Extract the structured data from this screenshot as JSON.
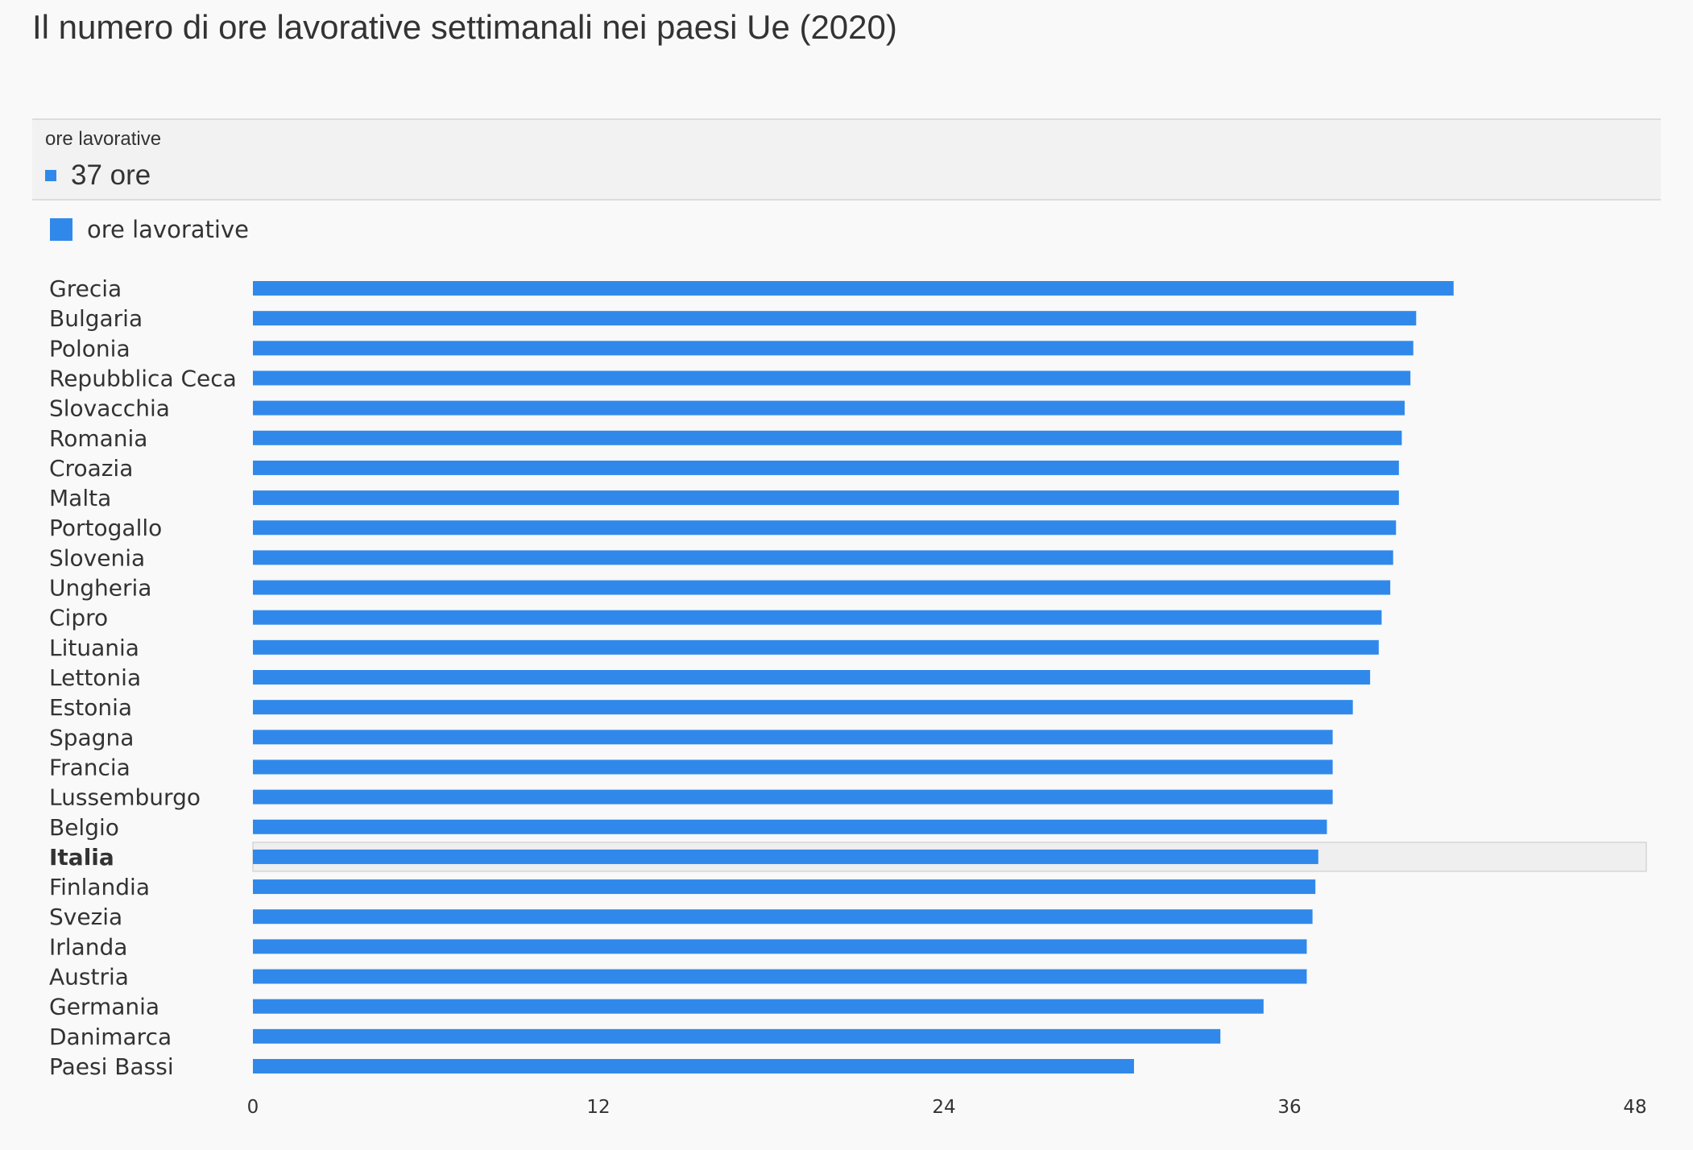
{
  "title": "Il numero di ore lavorative settimanali nei paesi Ue (2020)",
  "tooltip": {
    "label": "ore lavorative",
    "value": "37 ore",
    "highlighted_category": "Italia"
  },
  "legend": {
    "label": "ore lavorative"
  },
  "colors": {
    "bar": "#3089ea",
    "highlight_row_bg": "#efefef",
    "highlight_row_border": "#d6d6d6"
  },
  "chart_data": {
    "type": "bar",
    "orientation": "horizontal",
    "categories": [
      "Grecia",
      "Bulgaria",
      "Polonia",
      "Repubblica Ceca",
      "Slovacchia",
      "Romania",
      "Croazia",
      "Malta",
      "Portogallo",
      "Slovenia",
      "Ungheria",
      "Cipro",
      "Lituania",
      "Lettonia",
      "Estonia",
      "Spagna",
      "Francia",
      "Lussemburgo",
      "Belgio",
      "Italia",
      "Finlandia",
      "Svezia",
      "Irlanda",
      "Austria",
      "Germania",
      "Danimarca",
      "Paesi Bassi"
    ],
    "series": [
      {
        "name": "ore lavorative",
        "values": [
          41.7,
          40.4,
          40.3,
          40.2,
          40.0,
          39.9,
          39.8,
          39.8,
          39.7,
          39.6,
          39.5,
          39.2,
          39.1,
          38.8,
          38.2,
          37.5,
          37.5,
          37.5,
          37.3,
          37.0,
          36.9,
          36.8,
          36.6,
          36.6,
          35.1,
          33.6,
          30.6
        ]
      }
    ],
    "xlim": [
      0,
      48
    ],
    "xticks": [
      0,
      12,
      24,
      36,
      48
    ],
    "grid": false,
    "legend_position": "top-left"
  }
}
